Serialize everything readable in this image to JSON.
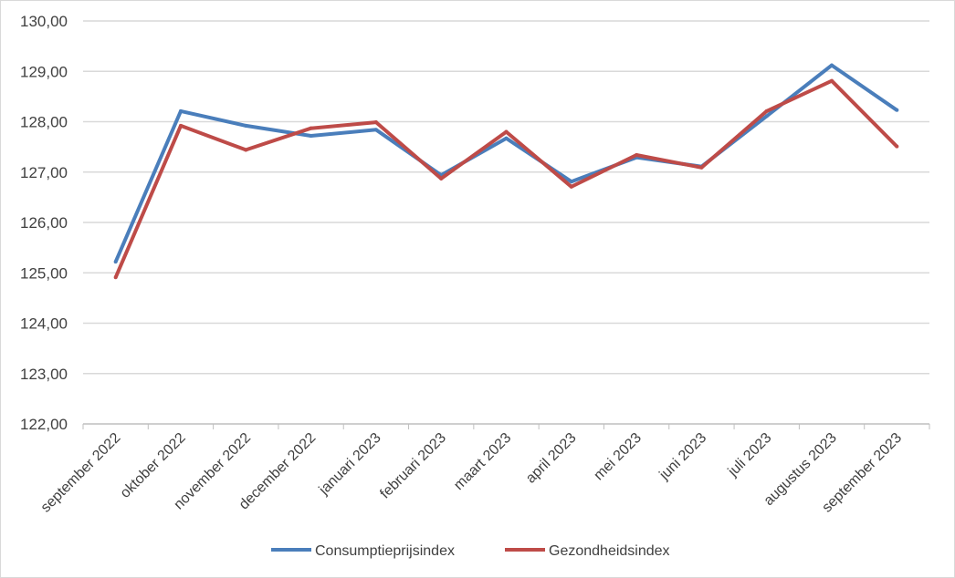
{
  "chart_data": {
    "type": "line",
    "title": "",
    "xlabel": "",
    "ylabel": "",
    "categories": [
      "september 2022",
      "oktober 2022",
      "november 2022",
      "december 2022",
      "januari 2023",
      "februari 2023",
      "maart 2023",
      "april 2023",
      "mei 2023",
      "juni 2023",
      "juli 2023",
      "augustus 2023",
      "september 2023"
    ],
    "y_ticks": [
      "122,00",
      "123,00",
      "124,00",
      "125,00",
      "126,00",
      "127,00",
      "128,00",
      "129,00",
      "130,00"
    ],
    "ylim": [
      122,
      130
    ],
    "grid": true,
    "legend_position": "bottom",
    "series": [
      {
        "name": "Consumptieprijsindex",
        "color": "#4a7ebb",
        "values": [
          125.22,
          128.21,
          127.92,
          127.72,
          127.84,
          126.94,
          127.67,
          126.81,
          127.29,
          127.11,
          128.11,
          129.12,
          128.23
        ]
      },
      {
        "name": "Gezondheidsindex",
        "color": "#be4b48",
        "values": [
          124.91,
          127.92,
          127.44,
          127.87,
          127.99,
          126.87,
          127.8,
          126.71,
          127.34,
          127.09,
          128.21,
          128.81,
          127.51
        ]
      }
    ]
  }
}
